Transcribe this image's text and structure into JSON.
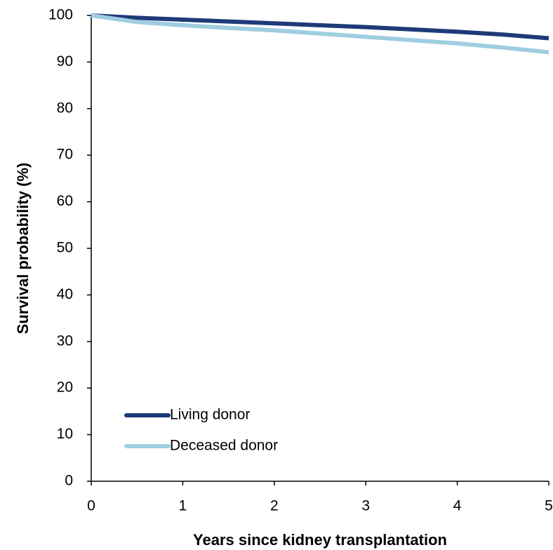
{
  "chart_data": {
    "type": "line",
    "xlabel": "Years since kidney transplantation",
    "ylabel": "Survival probability (%)",
    "x": [
      0,
      0.5,
      1,
      1.5,
      2,
      2.5,
      3,
      3.5,
      4,
      4.5,
      5
    ],
    "series": [
      {
        "name": "Living donor",
        "color": "#1f3a78",
        "values": [
          100,
          99.5,
          99.1,
          98.7,
          98.3,
          97.9,
          97.5,
          97.0,
          96.5,
          95.9,
          95.1
        ]
      },
      {
        "name": "Deceased donor",
        "color": "#9fcde0",
        "values": [
          100,
          98.6,
          97.9,
          97.3,
          96.8,
          96.1,
          95.4,
          94.7,
          94.0,
          93.1,
          92.1
        ]
      }
    ],
    "xlim": [
      0,
      5
    ],
    "xticks": [
      0,
      1,
      2,
      3,
      4,
      5
    ],
    "ylim": [
      0,
      100
    ],
    "yticks": [
      0,
      10,
      20,
      30,
      40,
      50,
      60,
      70,
      80,
      90,
      100
    ],
    "grid": false,
    "legend": "lower left"
  }
}
